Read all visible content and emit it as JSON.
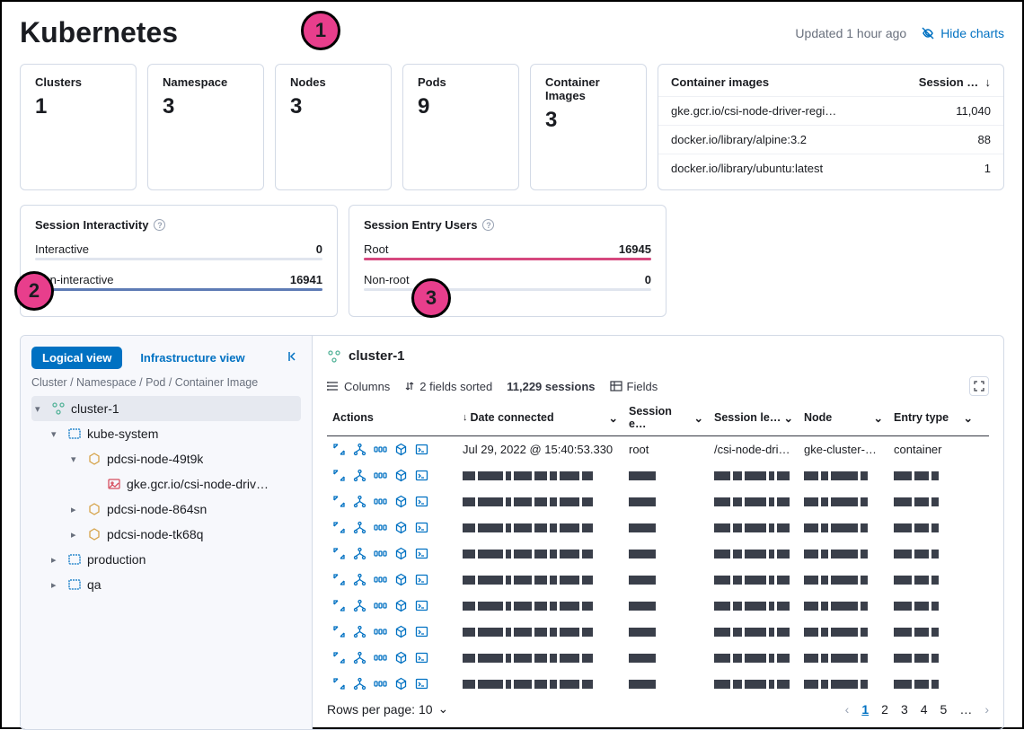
{
  "header": {
    "title": "Kubernetes",
    "updated": "Updated 1 hour ago",
    "hide_charts": "Hide charts"
  },
  "stats": [
    {
      "label": "Clusters",
      "value": "1"
    },
    {
      "label": "Namespace",
      "value": "3"
    },
    {
      "label": "Nodes",
      "value": "3"
    },
    {
      "label": "Pods",
      "value": "9"
    },
    {
      "label": "Container Images",
      "value": "3"
    }
  ],
  "image_table": {
    "head_left": "Container images",
    "head_right": "Session …",
    "rows": [
      {
        "name": "gke.gcr.io/csi-node-driver-regi…",
        "count": "11,040"
      },
      {
        "name": "docker.io/library/alpine:3.2",
        "count": "88"
      },
      {
        "name": "docker.io/library/ubuntu:latest",
        "count": "1"
      }
    ]
  },
  "chart1": {
    "title": "Session Interactivity",
    "rows": [
      {
        "label": "Interactive",
        "value": "0",
        "pct": 0,
        "color": "#5e7bb5"
      },
      {
        "label": "Non-interactive",
        "value": "16941",
        "pct": 100,
        "color": "#5e7bb5"
      }
    ]
  },
  "chart2": {
    "title": "Session Entry Users",
    "rows": [
      {
        "label": "Root",
        "value": "16945",
        "pct": 100,
        "color": "#d6487e"
      },
      {
        "label": "Non-root",
        "value": "0",
        "pct": 0,
        "color": "#d6487e"
      }
    ]
  },
  "sidebar": {
    "tab_logical": "Logical view",
    "tab_infra": "Infrastructure view",
    "breadcrumb": "Cluster / Namespace / Pod / Container Image",
    "tree": {
      "cluster": "cluster-1",
      "ns1": "kube-system",
      "pod1": "pdcsi-node-49t9k",
      "img1": "gke.gcr.io/csi-node-driv…",
      "pod2": "pdcsi-node-864sn",
      "pod3": "pdcsi-node-tk68q",
      "ns2": "production",
      "ns3": "qa"
    }
  },
  "content": {
    "title": "cluster-1",
    "toolbar": {
      "columns": "Columns",
      "sorted": "2 fields sorted",
      "sessions": "11,229 sessions",
      "fields": "Fields"
    },
    "columns": {
      "actions": "Actions",
      "date": "Date connected",
      "sess": "Session e…",
      "lead": "Session le…",
      "node": "Node",
      "entry": "Entry type"
    },
    "first_row": {
      "date": "Jul 29, 2022 @ 15:40:53.330",
      "sess": "root",
      "lead": "/csi-node-dri…",
      "node": "gke-cluster-…",
      "entry": "container"
    },
    "blur_rows": 9,
    "pagination": {
      "rows_label": "Rows per page: 10",
      "pages": [
        "1",
        "2",
        "3",
        "4",
        "5",
        "…"
      ],
      "active": 0
    }
  },
  "callouts": {
    "1": "1",
    "2": "2",
    "3": "3"
  },
  "colors": {
    "primary": "#0071c2",
    "pink": "#e83e8c"
  }
}
